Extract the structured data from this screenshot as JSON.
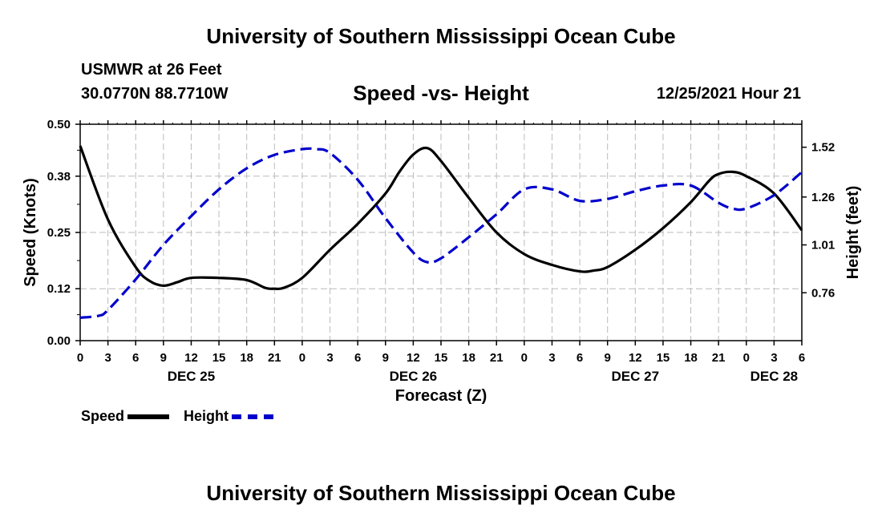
{
  "header": {
    "title": "University of Southern Mississippi Ocean Cube",
    "station": "USMWR at 26 Feet",
    "coords": "30.0770N  88.7710W",
    "chart_title": "Speed -vs- Height",
    "datetime": "12/25/2021 Hour 21"
  },
  "footer": {
    "title": "University of Southern Mississippi Ocean Cube"
  },
  "legend": {
    "speed_label": "Speed",
    "height_label": "Height"
  },
  "colors": {
    "speed": "#000000",
    "height": "#0000cc",
    "grid": "#bbbbbb"
  },
  "chart_data": {
    "type": "line",
    "title": "Speed -vs- Height",
    "xlabel": "Forecast (Z)",
    "ylabel": "Speed (Knots)",
    "y2label": "Height (feet)",
    "xlim": [
      0,
      78
    ],
    "ylim": [
      0,
      0.5
    ],
    "y2lim": [
      0.51,
      1.64
    ],
    "y_ticks": [
      0.0,
      0.12,
      0.25,
      0.38,
      0.5
    ],
    "y_tick_labels": [
      "0.00",
      "0.12",
      "0.25",
      "0.38",
      "0.50"
    ],
    "y2_ticks": [
      0.76,
      1.01,
      1.26,
      1.52
    ],
    "y2_tick_labels": [
      "0.76",
      "1.01",
      "1.26",
      "1.52"
    ],
    "x_ticks": [
      0,
      3,
      6,
      9,
      12,
      15,
      18,
      21,
      24,
      27,
      30,
      33,
      36,
      39,
      42,
      45,
      48,
      51,
      54,
      57,
      60,
      63,
      66,
      69,
      72,
      75,
      78
    ],
    "x_tick_labels": [
      "0",
      "3",
      "6",
      "9",
      "12",
      "15",
      "18",
      "21",
      "0",
      "3",
      "6",
      "9",
      "12",
      "15",
      "18",
      "21",
      "0",
      "3",
      "6",
      "9",
      "12",
      "15",
      "18",
      "21",
      "0",
      "3",
      "6"
    ],
    "day_labels": [
      {
        "x": 12,
        "label": "DEC 25"
      },
      {
        "x": 36,
        "label": "DEC 26"
      },
      {
        "x": 60,
        "label": "DEC 27"
      },
      {
        "x": 75,
        "label": "DEC 28"
      }
    ],
    "grid": true,
    "series": [
      {
        "name": "Speed",
        "axis": "left",
        "style": "solid",
        "x": [
          0,
          3,
          6,
          7.5,
          9,
          10.5,
          12,
          15,
          18,
          20,
          21,
          22,
          24,
          27,
          30,
          33,
          34.5,
          36,
          37.5,
          39,
          42,
          45,
          48,
          51,
          54,
          55.5,
          57,
          60,
          63,
          66,
          68,
          69,
          70.5,
          72,
          75,
          78
        ],
        "values": [
          0.45,
          0.28,
          0.17,
          0.138,
          0.127,
          0.135,
          0.145,
          0.145,
          0.14,
          0.122,
          0.12,
          0.122,
          0.145,
          0.21,
          0.27,
          0.34,
          0.39,
          0.43,
          0.445,
          0.415,
          0.33,
          0.25,
          0.2,
          0.175,
          0.16,
          0.162,
          0.17,
          0.21,
          0.26,
          0.32,
          0.37,
          0.385,
          0.39,
          0.38,
          0.34,
          0.255
        ]
      },
      {
        "name": "Height",
        "axis": "right",
        "style": "dashed",
        "x": [
          0,
          2,
          3,
          6,
          9,
          12,
          15,
          18,
          21,
          24,
          25.5,
          27,
          30,
          33,
          36,
          37.5,
          39,
          42,
          45,
          48,
          51,
          54,
          57,
          60,
          63,
          66,
          69,
          70.5,
          72,
          75,
          78
        ],
        "values": [
          0.63,
          0.64,
          0.67,
          0.83,
          1.01,
          1.16,
          1.3,
          1.41,
          1.48,
          1.51,
          1.51,
          1.49,
          1.35,
          1.15,
          0.97,
          0.92,
          0.94,
          1.05,
          1.17,
          1.3,
          1.3,
          1.24,
          1.25,
          1.29,
          1.32,
          1.32,
          1.23,
          1.2,
          1.2,
          1.27,
          1.39
        ]
      }
    ]
  }
}
